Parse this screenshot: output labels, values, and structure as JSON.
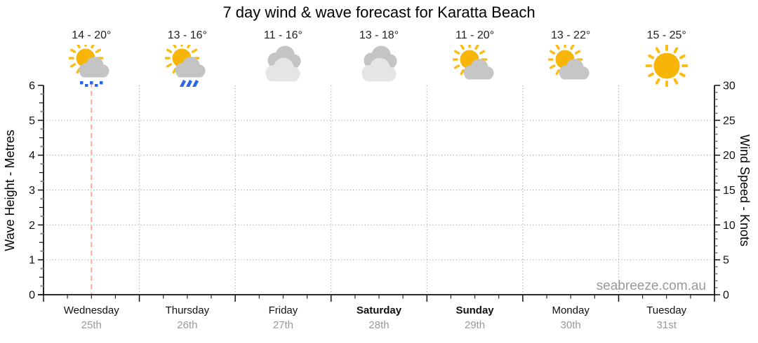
{
  "title": "7 day wind & wave forecast for Karatta Beach",
  "watermark": "seabreeze.com.au",
  "colors": {
    "sun": "#F7B508",
    "sun_ray": "#F9BE16",
    "cloud_medium": "#C4C4C4",
    "cloud_light": "#E5E5E5",
    "cloud_partly": "#C6C6C6",
    "rain_blue": "#2B65E8",
    "grid": "#A8A8A8",
    "axis": "#111111",
    "now_line": "#F8ACA4",
    "date_text": "#999999",
    "watermark_text": "#999999"
  },
  "chart_data": {
    "type": "line",
    "title": "7 day wind & wave forecast for Karatta Beach",
    "categories": [
      "Wednesday 25th",
      "Thursday 26th",
      "Friday 27th",
      "Saturday 28th",
      "Sunday 29th",
      "Monday 30th",
      "Tuesday 31st"
    ],
    "series": [],
    "plotted_points_note": "no wave-height or wind-speed curve is drawn in the visible plot area",
    "grid": "dotted horizontal lines at each major unit, dotted vertical lines at day boundaries",
    "y_left": {
      "label": "Wave Height - Metres",
      "range": [
        0,
        6
      ],
      "major_tick": 1,
      "minor_tick": 0.25,
      "tick_labels": [
        "0",
        "1",
        "2",
        "3",
        "4",
        "5",
        "6"
      ]
    },
    "y_right": {
      "label": "Wind Speed - Knots",
      "range": [
        0,
        30
      ],
      "major_tick": 5,
      "minor_tick": 1,
      "tick_labels": [
        "0",
        "5",
        "10",
        "15",
        "20",
        "25",
        "30"
      ]
    },
    "days": [
      {
        "name": "Wednesday",
        "date": "25th",
        "temp_range": "14 - 20°",
        "icon": "sun-cloud-drizzle",
        "bold": false
      },
      {
        "name": "Thursday",
        "date": "26th",
        "temp_range": "13 - 16°",
        "icon": "sun-cloud-rain",
        "bold": false
      },
      {
        "name": "Friday",
        "date": "27th",
        "temp_range": "11 - 16°",
        "icon": "cloudy",
        "bold": false
      },
      {
        "name": "Saturday",
        "date": "28th",
        "temp_range": "13 - 18°",
        "icon": "cloudy",
        "bold": true
      },
      {
        "name": "Sunday",
        "date": "29th",
        "temp_range": "11 - 20°",
        "icon": "sun-cloud",
        "bold": true
      },
      {
        "name": "Monday",
        "date": "30th",
        "temp_range": "13 - 22°",
        "icon": "sun-cloud",
        "bold": false
      },
      {
        "name": "Tuesday",
        "date": "31st",
        "temp_range": "15 - 25°",
        "icon": "sunny",
        "bold": false
      }
    ],
    "now_marker": {
      "day_index": 0,
      "fraction": 0.5,
      "style": "pink dashed vertical line"
    }
  }
}
